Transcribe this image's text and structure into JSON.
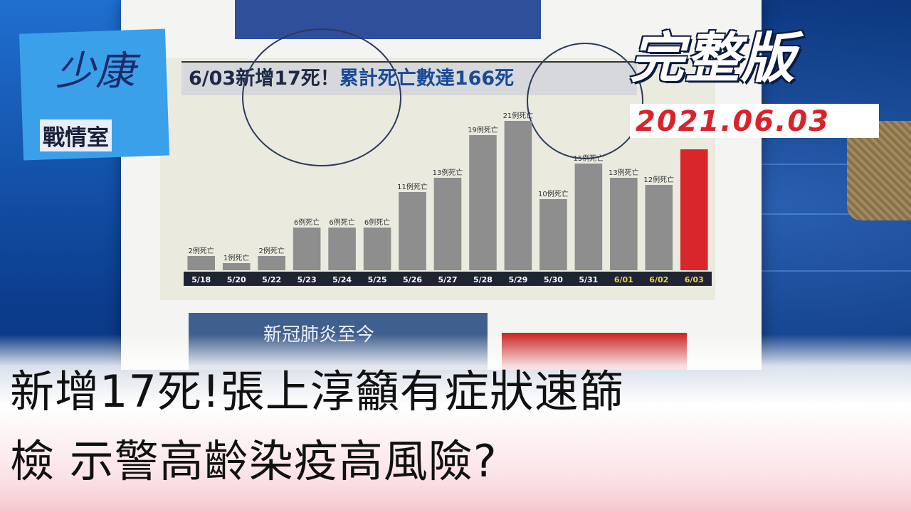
{
  "logo": {
    "signature": "少康",
    "name": "戰情室"
  },
  "badge": {
    "full_version": "完整版",
    "date": "2021.06.03"
  },
  "board": {
    "headline_part1": "6/03新增17死！",
    "headline_part2": "累計死亡數達166死",
    "lower_box": "新冠肺炎至今"
  },
  "chart_data": {
    "type": "bar",
    "categories": [
      "5/18",
      "5/20",
      "5/22",
      "5/23",
      "5/24",
      "5/25",
      "5/26",
      "5/27",
      "5/28",
      "5/29",
      "5/30",
      "5/31",
      "6/01",
      "6/02",
      "6/03"
    ],
    "values": [
      2,
      1,
      2,
      6,
      6,
      6,
      11,
      13,
      19,
      21,
      10,
      15,
      13,
      12,
      17
    ],
    "data_labels": [
      "2例死亡",
      "1例死亡",
      "2例死亡",
      "6例死亡",
      "6例死亡",
      "6例死亡",
      "11例死亡",
      "13例死亡",
      "19例死亡",
      "21例死亡",
      "10例死亡",
      "15例死亡",
      "13例死亡",
      "12例死亡",
      ""
    ],
    "highlight_color": "#d9262b",
    "bar_color": "#8e8e8e",
    "title": "6/03新增17死！累計死亡數達166死",
    "ylim": [
      0,
      23
    ]
  },
  "caption": {
    "line1": "新增17死!張上淳籲有症狀速篩",
    "line2": "檢  示警高齡染疫高風險?"
  }
}
